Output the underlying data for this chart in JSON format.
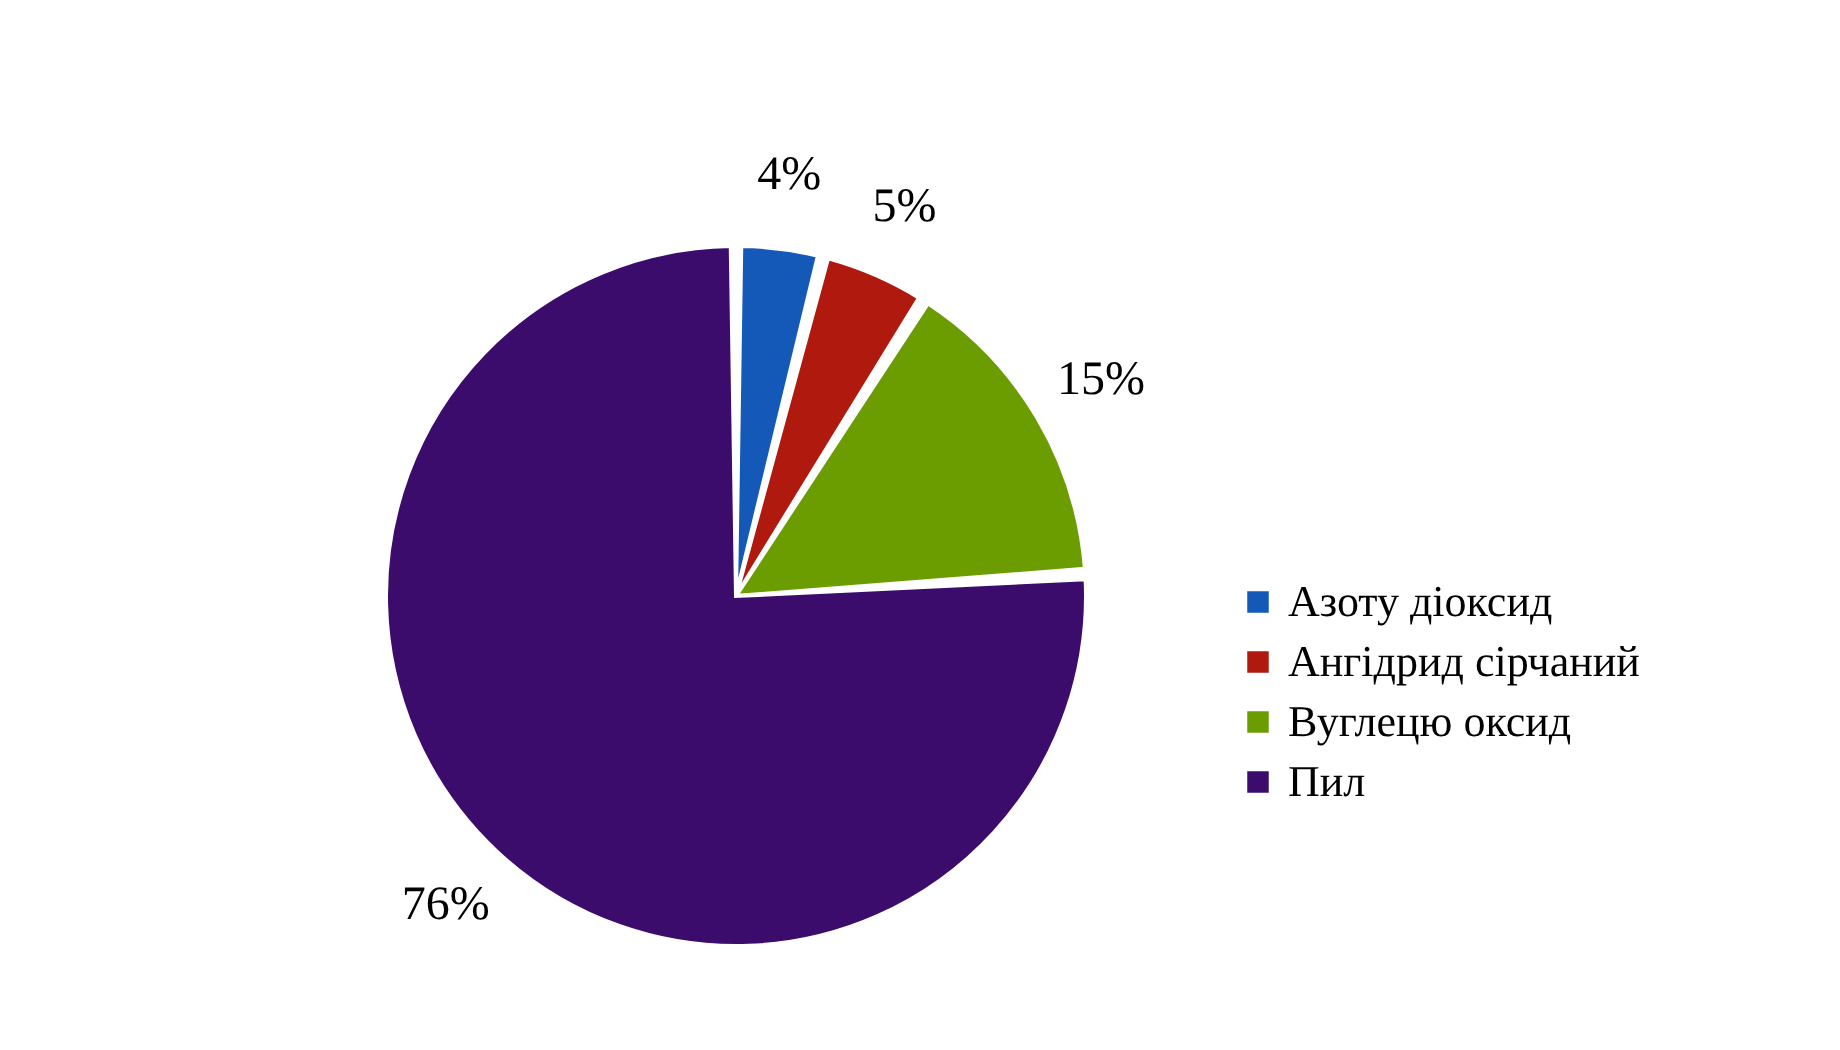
{
  "chart_data": {
    "type": "pie",
    "categories": [
      "Азоту діоксид",
      "Ангідрид сірчаний",
      "Вуглецю оксид",
      "Пил"
    ],
    "values": [
      4,
      5,
      15,
      76
    ],
    "value_labels": [
      "4%",
      "5%",
      "15%",
      "76%"
    ],
    "colors": [
      "#1458b8",
      "#b0190e",
      "#6b9c00",
      "#3c0c6c"
    ],
    "legend": "right"
  }
}
